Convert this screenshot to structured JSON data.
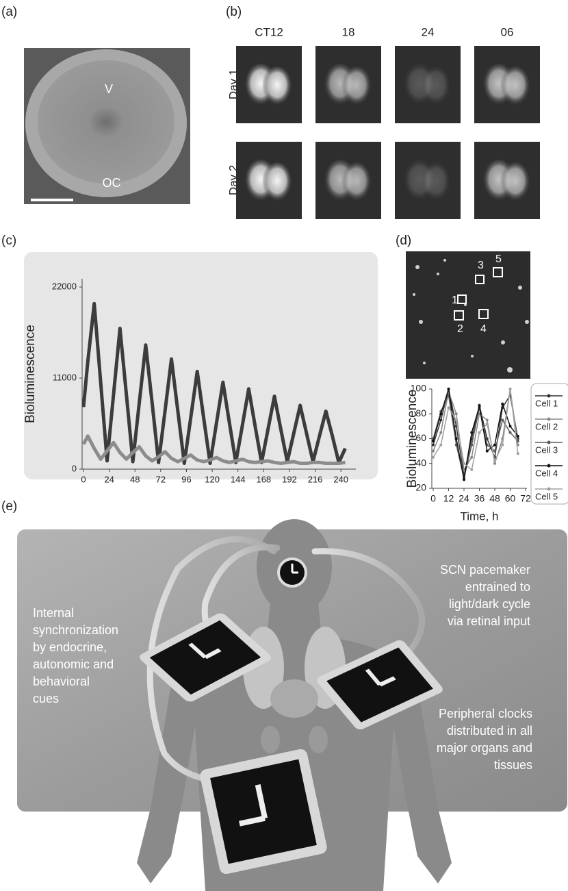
{
  "panels": {
    "a": {
      "label": "(a)",
      "annotations": [
        "V",
        "OC"
      ]
    },
    "b": {
      "label": "(b)",
      "columns": [
        "CT12",
        "18",
        "24",
        "06"
      ],
      "rows": [
        "Day 1",
        "Day 2"
      ]
    },
    "c": {
      "label": "(c)"
    },
    "d": {
      "label": "(d)",
      "roi_labels": [
        "1",
        "2",
        "3",
        "4",
        "5"
      ]
    },
    "e": {
      "label": "(e)",
      "texts": [
        [
          "SCN pacemaker",
          "entrained to",
          "light/dark cycle",
          "via retinal input"
        ],
        [
          "Internal",
          "synchronization",
          "by endocrine,",
          "autonomic and",
          "behavioral",
          "cues"
        ],
        [
          "Peripheral clocks",
          "distributed in all",
          "major organs and",
          "tissues"
        ]
      ]
    }
  },
  "chart_data": [
    {
      "type": "line",
      "ylabel": "Bioluminescence",
      "x": [
        0,
        4,
        10,
        16,
        22,
        28,
        34,
        40,
        46,
        52,
        58,
        64,
        70,
        76,
        82,
        88,
        94,
        100,
        106,
        112,
        118,
        124,
        130,
        136,
        142,
        148,
        154,
        160,
        166,
        172,
        178,
        184,
        190,
        196,
        202,
        208,
        214,
        220,
        226,
        232,
        238,
        244
      ],
      "series": [
        {
          "color": "#3c3c3c",
          "values": [
            7500,
            13000,
            20000,
            10500,
            1000,
            9000,
            17000,
            9000,
            900,
            8000,
            15000,
            8000,
            800,
            7000,
            13300,
            7000,
            700,
            6200,
            11800,
            6200,
            700,
            5600,
            10500,
            5600,
            800,
            5200,
            9700,
            5200,
            800,
            4800,
            8800,
            4800,
            900,
            4300,
            7700,
            4300,
            900,
            4000,
            7000,
            4000,
            800,
            2500
          ]
        },
        {
          "color": "#8c8c8c",
          "values": [
            3000,
            4000,
            2500,
            1200,
            2200,
            3200,
            2000,
            1200,
            2000,
            2700,
            1600,
            1000,
            1500,
            2100,
            1300,
            900,
            1300,
            1700,
            1100,
            900,
            1100,
            1400,
            1000,
            800,
            1000,
            1200,
            900,
            800,
            900,
            1000,
            800,
            700,
            800,
            900,
            700,
            700,
            800,
            800,
            700,
            700,
            700,
            800
          ]
        }
      ],
      "xlim": [
        0,
        252
      ],
      "xticks": [
        0,
        24,
        48,
        72,
        96,
        120,
        144,
        168,
        192,
        216,
        240
      ],
      "ylim": [
        0,
        23000
      ],
      "yticks": [
        0,
        11000,
        22000
      ]
    },
    {
      "type": "line",
      "xlabel": "Time, h",
      "ylabel": "Bioluminescence",
      "x": [
        0,
        6,
        12,
        18,
        24,
        30,
        36,
        42,
        48,
        54,
        60,
        66
      ],
      "series": [
        {
          "name": "Cell 1",
          "color": "#333333",
          "values": [
            55,
            75,
            100,
            70,
            30,
            60,
            87,
            60,
            45,
            85,
            95,
            60
          ]
        },
        {
          "name": "Cell 2",
          "color": "#888888",
          "values": [
            50,
            65,
            98,
            80,
            35,
            45,
            80,
            75,
            40,
            60,
            100,
            55
          ]
        },
        {
          "name": "Cell 3",
          "color": "#5a5a5a",
          "values": [
            60,
            82,
            95,
            55,
            28,
            55,
            85,
            55,
            50,
            75,
            65,
            58
          ]
        },
        {
          "name": "Cell 4",
          "color": "#111111",
          "values": [
            58,
            80,
            100,
            60,
            27,
            65,
            86,
            50,
            55,
            88,
            70,
            62
          ]
        },
        {
          "name": "Cell 5",
          "color": "#a0a0a0",
          "values": [
            45,
            55,
            85,
            75,
            40,
            35,
            65,
            72,
            42,
            55,
            100,
            48
          ]
        }
      ],
      "xlim": [
        0,
        72
      ],
      "xticks": [
        0,
        12,
        24,
        36,
        48,
        60,
        72
      ],
      "ylim": [
        20,
        100
      ],
      "yticks": [
        20,
        40,
        60,
        80,
        100
      ]
    }
  ]
}
